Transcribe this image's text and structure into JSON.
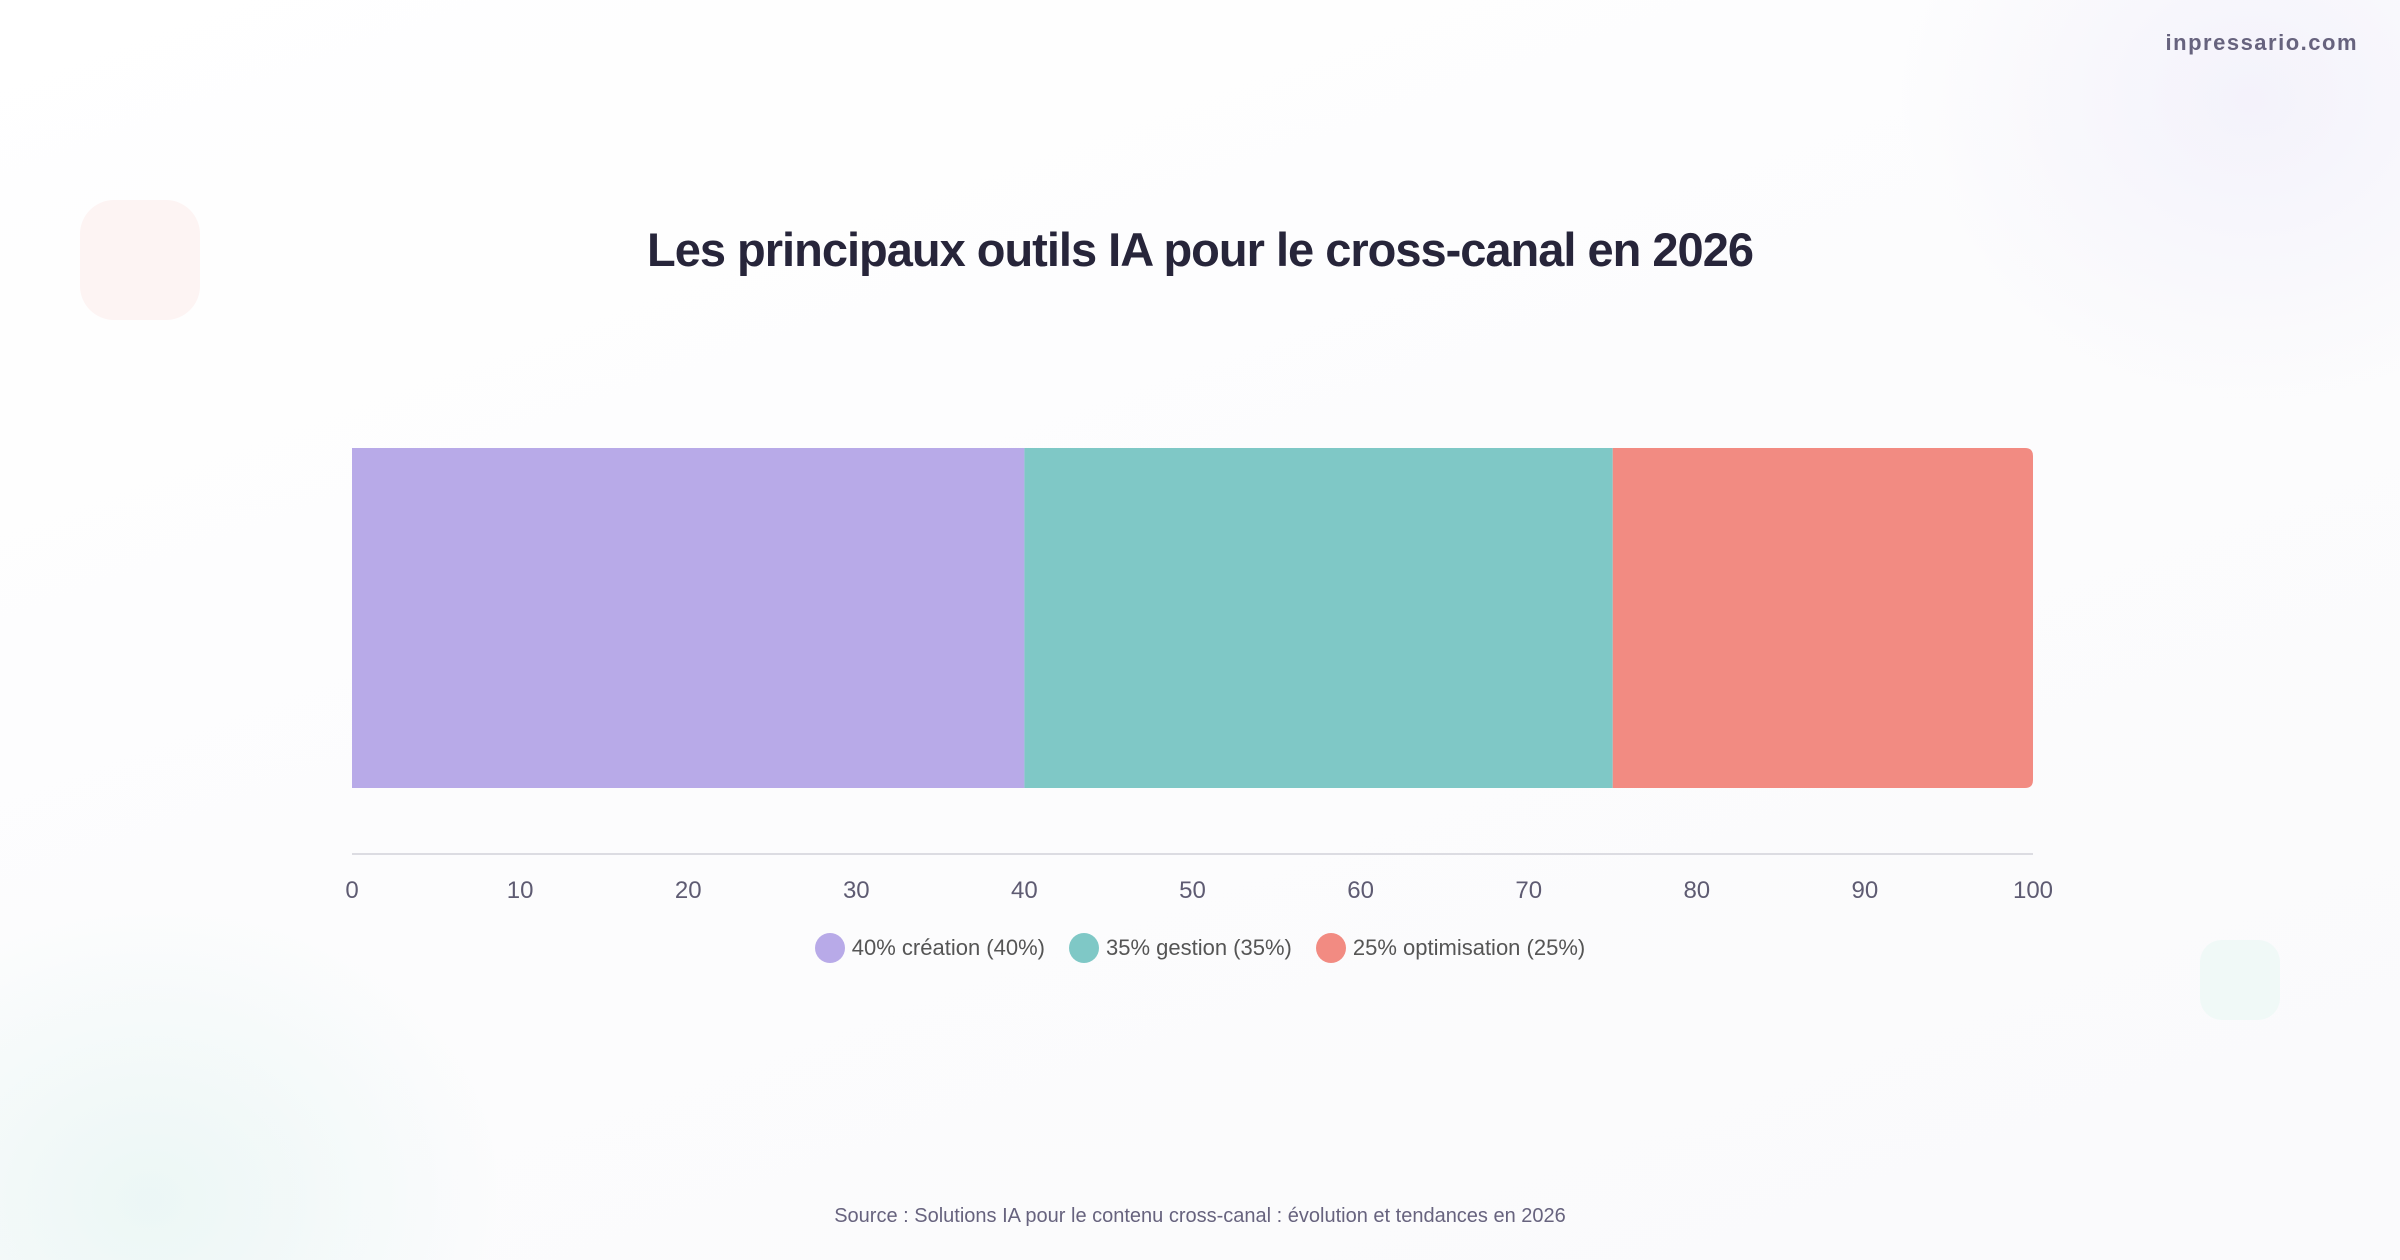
{
  "brand": "inpressario.com",
  "title": "Les principaux outils IA pour le cross-canal en 2026",
  "source": "Source : Solutions IA pour le contenu cross-canal : évolution et tendances en 2026",
  "chart_data": {
    "type": "bar",
    "orientation": "horizontal-stacked",
    "title": "Les principaux outils IA pour le cross-canal en 2026",
    "xlim": [
      0,
      100
    ],
    "ticks": [
      "0",
      "10",
      "20",
      "30",
      "40",
      "50",
      "60",
      "70",
      "80",
      "90",
      "100"
    ],
    "grid": false,
    "legend_placement": "bottom",
    "series": [
      {
        "name": "40% création (40%)",
        "value": 40,
        "color": "#b8aae8"
      },
      {
        "name": "35% gestion (35%)",
        "value": 35,
        "color": "#7fc8c6"
      },
      {
        "name": "25% optimisation (25%)",
        "value": 25,
        "color": "#f28b82"
      }
    ]
  }
}
